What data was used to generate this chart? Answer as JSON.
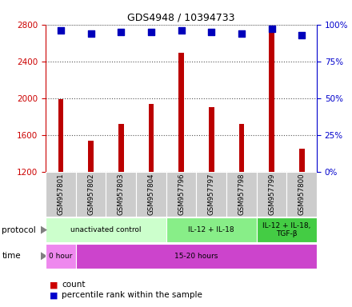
{
  "title": "GDS4948 / 10394733",
  "samples": [
    "GSM957801",
    "GSM957802",
    "GSM957803",
    "GSM957804",
    "GSM957796",
    "GSM957797",
    "GSM957798",
    "GSM957799",
    "GSM957800"
  ],
  "counts": [
    1990,
    1540,
    1720,
    1940,
    2490,
    1900,
    1720,
    2760,
    1450
  ],
  "percentile_ranks": [
    96,
    94,
    95,
    95,
    96,
    95,
    94,
    97,
    93
  ],
  "ylim_left": [
    1200,
    2800
  ],
  "ylim_right": [
    0,
    100
  ],
  "yticks_left": [
    1200,
    1600,
    2000,
    2400,
    2800
  ],
  "yticks_right": [
    0,
    25,
    50,
    75,
    100
  ],
  "bar_color": "#bb0000",
  "dot_color": "#0000bb",
  "bar_width": 0.18,
  "dot_size": 30,
  "protocol_groups": [
    {
      "label": "unactivated control",
      "start": 0,
      "end": 4,
      "color": "#ccffcc"
    },
    {
      "label": "IL-12 + IL-18",
      "start": 4,
      "end": 7,
      "color": "#88ee88"
    },
    {
      "label": "IL-12 + IL-18,\nTGF-β",
      "start": 7,
      "end": 9,
      "color": "#44cc44"
    }
  ],
  "time_groups": [
    {
      "label": "0 hour",
      "start": 0,
      "end": 1,
      "color": "#ee88ee"
    },
    {
      "label": "15-20 hours",
      "start": 1,
      "end": 9,
      "color": "#cc44cc"
    }
  ],
  "grid_color": "#555555",
  "left_axis_color": "#cc0000",
  "right_axis_color": "#0000cc",
  "sample_box_color": "#cccccc",
  "legend_count_color": "#cc0000",
  "legend_pct_color": "#0000cc"
}
